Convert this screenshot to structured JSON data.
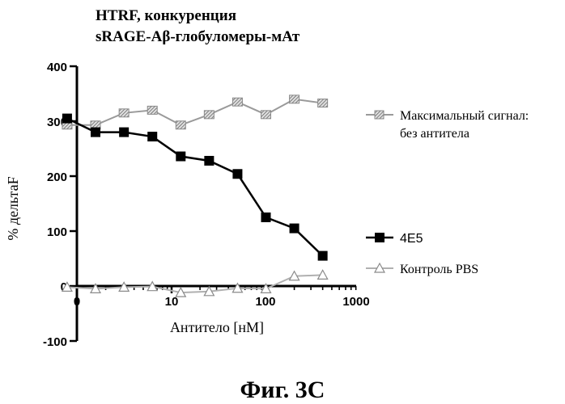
{
  "chart_data": {
    "type": "line",
    "title_lines": [
      "HTRF, конкуренция",
      "sRAGE-Aβ-глобуломеры-мАт"
    ],
    "xlabel": "Антитело [нМ]",
    "ylabel": "% дельтаF",
    "x_scale": "log",
    "x_tick_labels": [
      "0",
      "10",
      "100",
      "1000"
    ],
    "y_tick_labels": [
      "400",
      "300",
      "200",
      "100",
      "0",
      "-100"
    ],
    "ylim": [
      -100,
      400
    ],
    "legend_placement": "right",
    "series": [
      {
        "name_lines": [
          "Максимальный сигнал:",
          "без антитела"
        ],
        "color": "#9a9a9a",
        "marker": "hatched-square",
        "x": [
          0.78,
          1.56,
          3.125,
          6.25,
          12.5,
          25,
          50,
          100,
          200,
          400
        ],
        "y": [
          293,
          293,
          315,
          320,
          293,
          312,
          335,
          312,
          340,
          333
        ]
      },
      {
        "name_lines": [
          "4E5"
        ],
        "color": "#000000",
        "marker": "filled-square",
        "x": [
          0.78,
          1.56,
          3.125,
          6.25,
          12.5,
          25,
          50,
          100,
          200,
          400
        ],
        "y": [
          305,
          280,
          280,
          272,
          236,
          228,
          204,
          125,
          105,
          55
        ]
      },
      {
        "name_lines": [
          "Контроль PBS"
        ],
        "color": "#b0b0b0",
        "marker": "open-triangle",
        "x": [
          0.78,
          1.56,
          3.125,
          6.25,
          12.5,
          25,
          50,
          100,
          200,
          400
        ],
        "y": [
          -2,
          -5,
          -2,
          -1,
          -12,
          -10,
          -4,
          -5,
          18,
          20
        ]
      }
    ]
  },
  "figure_caption": "Фиг. 3С"
}
